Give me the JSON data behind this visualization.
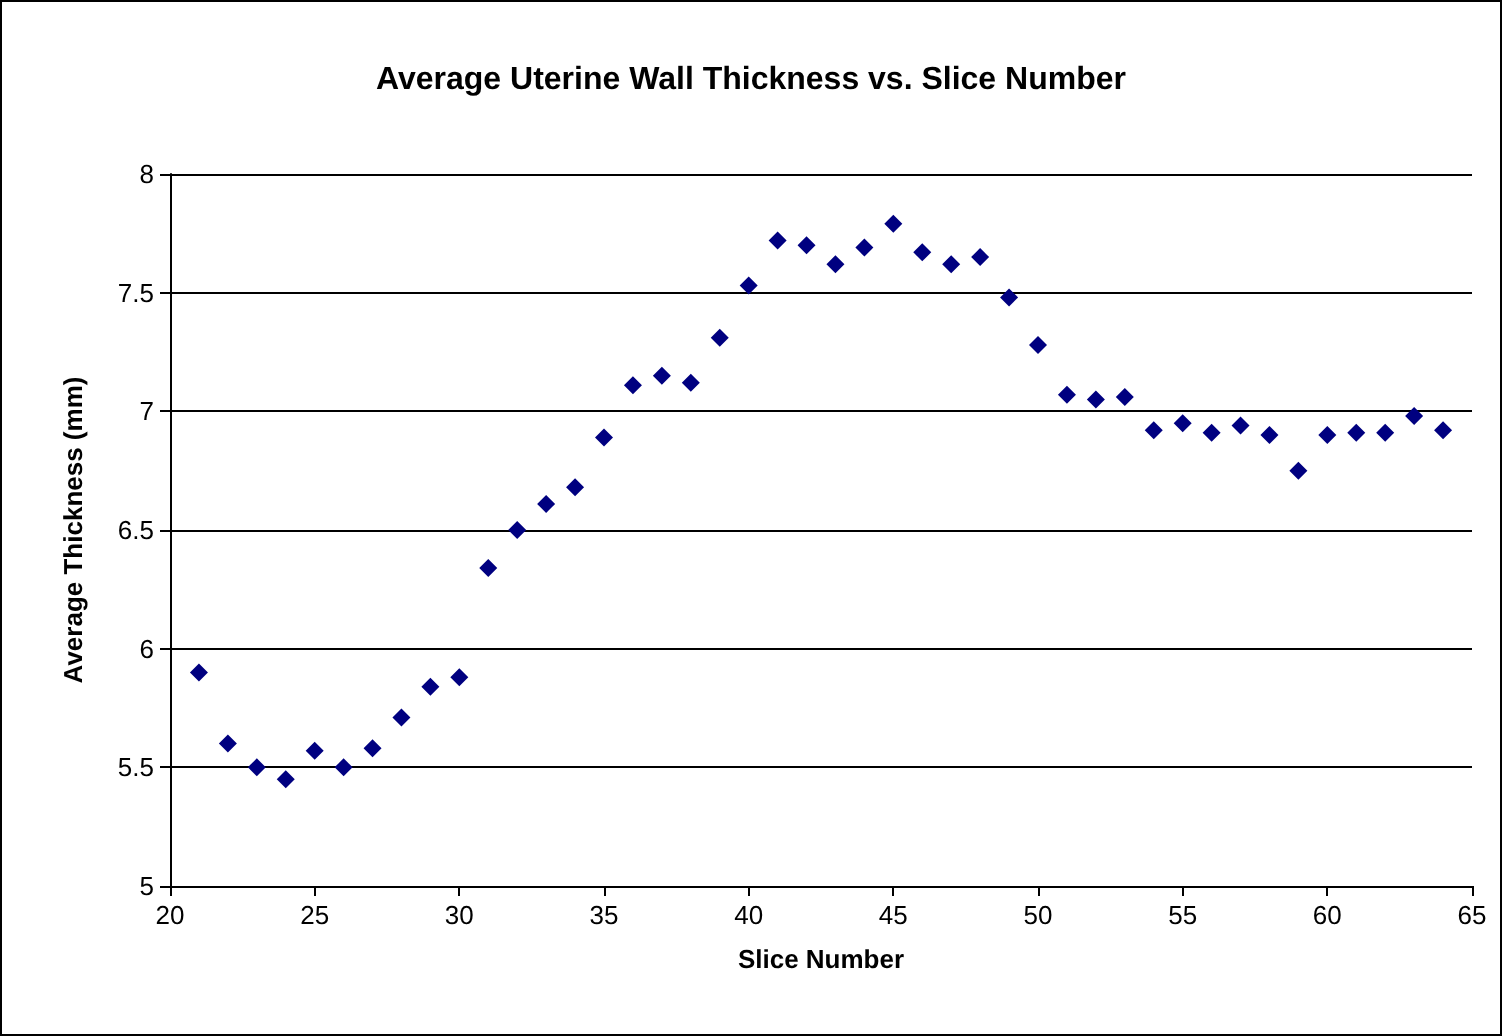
{
  "chart_data": {
    "type": "scatter",
    "title": "Average Uterine Wall Thickness vs. Slice Number",
    "xlabel": "Slice Number",
    "ylabel": "Average Thickness (mm)",
    "x": [
      21,
      22,
      23,
      24,
      25,
      26,
      27,
      28,
      29,
      30,
      31,
      32,
      33,
      34,
      35,
      36,
      37,
      38,
      39,
      40,
      41,
      42,
      43,
      44,
      45,
      46,
      47,
      48,
      49,
      50,
      51,
      52,
      53,
      54,
      55,
      56,
      57,
      58,
      59,
      60,
      61,
      62,
      63,
      64
    ],
    "values": [
      5.9,
      5.6,
      5.5,
      5.45,
      5.57,
      5.5,
      5.58,
      5.71,
      5.84,
      5.88,
      6.34,
      6.5,
      6.61,
      6.68,
      6.89,
      7.11,
      7.15,
      7.12,
      7.31,
      7.53,
      7.72,
      7.7,
      7.62,
      7.69,
      7.79,
      7.67,
      7.62,
      7.65,
      7.48,
      7.28,
      7.07,
      7.05,
      7.06,
      6.92,
      6.95,
      6.91,
      6.94,
      6.9,
      6.75,
      6.9,
      6.91,
      6.91,
      6.98,
      6.92
    ],
    "color": "#000080",
    "marker": "diamond",
    "xlim": [
      20,
      65
    ],
    "xticks": [
      20,
      25,
      30,
      35,
      40,
      45,
      50,
      55,
      60,
      65
    ],
    "ylim": [
      5,
      8
    ],
    "yticks": [
      5,
      5.5,
      6,
      6.5,
      7,
      7.5,
      8
    ],
    "grid": "y"
  }
}
